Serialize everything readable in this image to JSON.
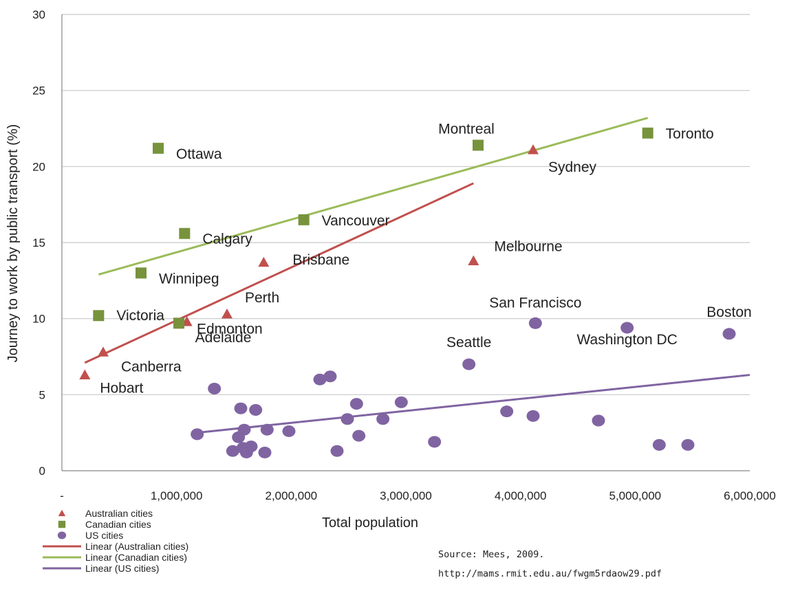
{
  "chart_data": {
    "type": "scatter",
    "xlabel": "Total population",
    "ylabel": "Journey to work by public transport (%)",
    "xlim": [
      0,
      6000000
    ],
    "ylim": [
      0,
      30
    ],
    "x_ticks": [
      0,
      1000000,
      2000000,
      3000000,
      4000000,
      5000000,
      6000000
    ],
    "x_tick_labels": [
      "-",
      "1,000,000",
      "2,000,000",
      "3,000,000",
      "4,000,000",
      "5,000,000",
      "6,000,000"
    ],
    "y_ticks": [
      0,
      5,
      10,
      15,
      20,
      25,
      30
    ],
    "y_tick_labels": [
      "0",
      "5",
      "10",
      "15",
      "20",
      "25",
      "30"
    ],
    "grid": "horizontal",
    "legend_position": "bottom-left",
    "series": [
      {
        "name": "Australian cities",
        "marker": "triangle",
        "color": "#c0504d",
        "points": [
          {
            "label": "Hobart",
            "x": 200000,
            "y": 6.3
          },
          {
            "label": "Canberra",
            "x": 360000,
            "y": 7.8
          },
          {
            "label": "Adelaide",
            "x": 1090000,
            "y": 9.8
          },
          {
            "label": "Perth",
            "x": 1440000,
            "y": 10.3
          },
          {
            "label": "Brisbane",
            "x": 1760000,
            "y": 13.7
          },
          {
            "label": "Melbourne",
            "x": 3590000,
            "y": 13.8
          },
          {
            "label": "Sydney",
            "x": 4110000,
            "y": 21.1
          }
        ]
      },
      {
        "name": "Canadian cities",
        "marker": "square",
        "color": "#77933c",
        "points": [
          {
            "label": "Victoria",
            "x": 320000,
            "y": 10.2
          },
          {
            "label": "Winnipeg",
            "x": 690000,
            "y": 13.0
          },
          {
            "label": "Ottawa",
            "x": 840000,
            "y": 21.2
          },
          {
            "label": "Edmonton",
            "x": 1020000,
            "y": 9.7
          },
          {
            "label": "Calgary",
            "x": 1070000,
            "y": 15.6
          },
          {
            "label": "Vancouver",
            "x": 2110000,
            "y": 16.5
          },
          {
            "label": "Montreal",
            "x": 3630000,
            "y": 21.4
          },
          {
            "label": "Toronto",
            "x": 5110000,
            "y": 22.2
          }
        ]
      },
      {
        "name": "US cities",
        "marker": "circle",
        "color": "#8064a2",
        "points": [
          {
            "x": 1180000,
            "y": 2.4
          },
          {
            "x": 1330000,
            "y": 5.4
          },
          {
            "x": 1490000,
            "y": 1.3
          },
          {
            "x": 1540000,
            "y": 2.2
          },
          {
            "x": 1560000,
            "y": 4.1
          },
          {
            "x": 1580000,
            "y": 1.5
          },
          {
            "x": 1590000,
            "y": 2.7
          },
          {
            "x": 1610000,
            "y": 1.2
          },
          {
            "x": 1650000,
            "y": 1.6
          },
          {
            "x": 1690000,
            "y": 4.0
          },
          {
            "x": 1770000,
            "y": 1.2
          },
          {
            "x": 1790000,
            "y": 2.7
          },
          {
            "x": 1980000,
            "y": 2.6
          },
          {
            "x": 2250000,
            "y": 6.0
          },
          {
            "x": 2340000,
            "y": 6.2
          },
          {
            "x": 2400000,
            "y": 1.3
          },
          {
            "x": 2490000,
            "y": 3.4
          },
          {
            "x": 2570000,
            "y": 4.4
          },
          {
            "x": 2590000,
            "y": 2.3
          },
          {
            "x": 2800000,
            "y": 3.4
          },
          {
            "x": 2960000,
            "y": 4.5
          },
          {
            "x": 3250000,
            "y": 1.9
          },
          {
            "label": "Seattle",
            "x": 3550000,
            "y": 7.0
          },
          {
            "x": 3880000,
            "y": 3.9
          },
          {
            "x": 4110000,
            "y": 3.6
          },
          {
            "label": "San Francisco",
            "x": 4130000,
            "y": 9.7
          },
          {
            "x": 4680000,
            "y": 3.3
          },
          {
            "label": "Washington DC",
            "x": 4930000,
            "y": 9.4
          },
          {
            "x": 5210000,
            "y": 1.7
          },
          {
            "x": 5460000,
            "y": 1.7
          },
          {
            "label": "Boston",
            "x": 5820000,
            "y": 9.0
          }
        ]
      }
    ],
    "trendlines": [
      {
        "name": "Linear (Australian cities)",
        "color": "#c0504d",
        "x": [
          200000,
          3590000
        ],
        "y": [
          7.1,
          18.9
        ]
      },
      {
        "name": "Linear (Canadian cities)",
        "color": "#9bbb59",
        "x": [
          320000,
          5110000
        ],
        "y": [
          12.9,
          23.2
        ]
      },
      {
        "name": "Linear (US cities)",
        "color": "#8064a2",
        "x": [
          1180000,
          6000000
        ],
        "y": [
          2.5,
          6.3
        ]
      }
    ],
    "source": "Source: Mees, 2009.",
    "source_url": "http://mams.rmit.edu.au/fwgm5rdaow29.pdf"
  }
}
